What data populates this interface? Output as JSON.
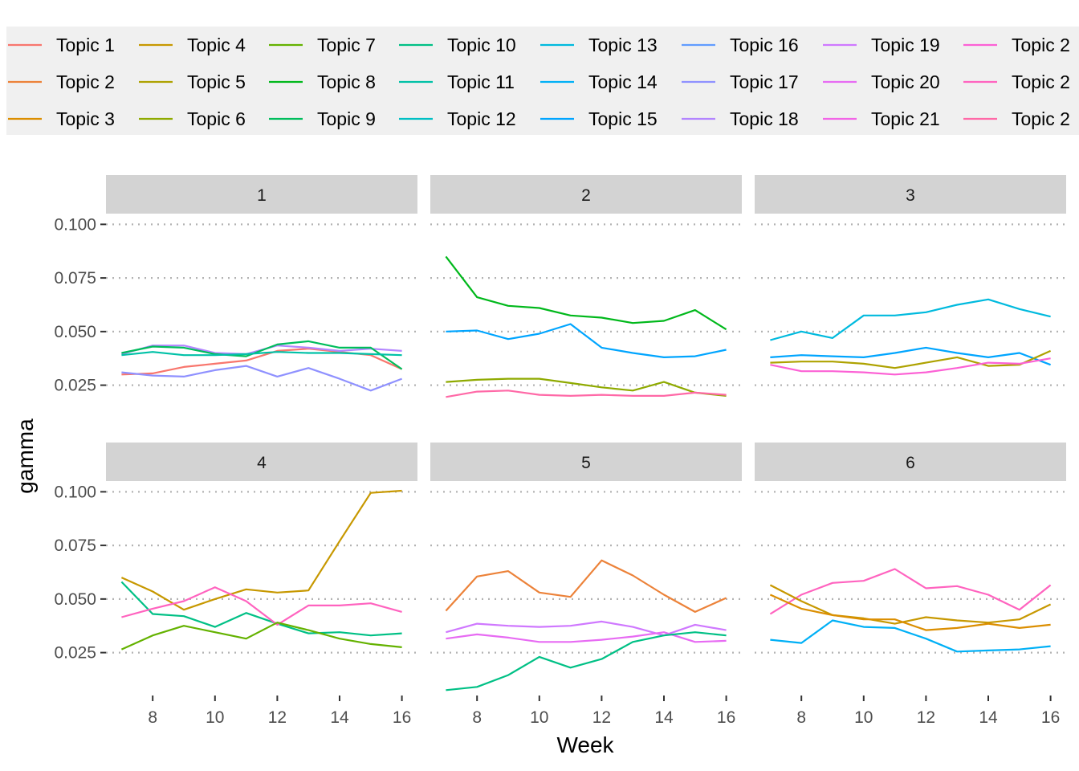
{
  "chart_data": {
    "type": "line",
    "xlabel": "Week",
    "ylabel": "gamma",
    "xlim": [
      6.5,
      16.5
    ],
    "ylim": [
      0.005,
      0.105
    ],
    "x_ticks": [
      8,
      10,
      12,
      14,
      16
    ],
    "x_tick_labels": [
      "8",
      "10",
      "12",
      "14",
      "16"
    ],
    "y_ticks": [
      0.025,
      0.05,
      0.075,
      0.1
    ],
    "y_tick_labels": [
      "0.025",
      "0.050",
      "0.075",
      "0.100"
    ],
    "grid": "horizontal-major-dotted",
    "legend_position": "top",
    "legend": [
      {
        "label": "Topic 1",
        "color": "#F8766D"
      },
      {
        "label": "Topic 2",
        "color": "#EC8239"
      },
      {
        "label": "Topic 3",
        "color": "#DB8E00"
      },
      {
        "label": "Topic 4",
        "color": "#C79800"
      },
      {
        "label": "Topic 5",
        "color": "#AEA200"
      },
      {
        "label": "Topic 6",
        "color": "#8FAA00"
      },
      {
        "label": "Topic 7",
        "color": "#64B200"
      },
      {
        "label": "Topic 8",
        "color": "#00B81B"
      },
      {
        "label": "Topic 9",
        "color": "#00BD5C"
      },
      {
        "label": "Topic 10",
        "color": "#00C085"
      },
      {
        "label": "Topic 11",
        "color": "#00C1A7"
      },
      {
        "label": "Topic 12",
        "color": "#00BFC4"
      },
      {
        "label": "Topic 13",
        "color": "#00BADE"
      },
      {
        "label": "Topic 14",
        "color": "#00B0F6"
      },
      {
        "label": "Topic 15",
        "color": "#00A5FF"
      },
      {
        "label": "Topic 16",
        "color": "#619CFF"
      },
      {
        "label": "Topic 17",
        "color": "#8F91FF"
      },
      {
        "label": "Topic 18",
        "color": "#B385FF"
      },
      {
        "label": "Topic 19",
        "color": "#CF78FF"
      },
      {
        "label": "Topic 20",
        "color": "#E76BF3"
      },
      {
        "label": "Topic 21",
        "color": "#F265E7"
      },
      {
        "label": "Topic 2",
        "color": "#FC61D5"
      },
      {
        "label": "Topic 2",
        "color": "#FF63BF"
      },
      {
        "label": "Topic 2",
        "color": "#FF69A7"
      }
    ],
    "facets": [
      {
        "label": "1",
        "series": [
          {
            "color": "#F8766D",
            "x": [
              7,
              8,
              9,
              10,
              11,
              12,
              13,
              14,
              15,
              16
            ],
            "y": [
              0.03,
              0.0305,
              0.0335,
              0.035,
              0.0365,
              0.041,
              0.042,
              0.0405,
              0.039,
              0.0325
            ]
          },
          {
            "color": "#B385FF",
            "x": [
              7,
              8,
              9,
              10,
              11,
              12,
              13,
              14,
              15,
              16
            ],
            "y": [
              0.0395,
              0.0435,
              0.0435,
              0.04,
              0.0395,
              0.0435,
              0.0425,
              0.041,
              0.042,
              0.041
            ]
          },
          {
            "color": "#00BD5C",
            "x": [
              7,
              8,
              9,
              10,
              11,
              12,
              13,
              14,
              15,
              16
            ],
            "y": [
              0.04,
              0.043,
              0.0425,
              0.0395,
              0.0385,
              0.044,
              0.0455,
              0.0425,
              0.0425,
              0.0325
            ]
          },
          {
            "color": "#00C1A7",
            "x": [
              7,
              8,
              9,
              10,
              11,
              12,
              13,
              14,
              15,
              16
            ],
            "y": [
              0.039,
              0.0405,
              0.039,
              0.039,
              0.0395,
              0.0405,
              0.04,
              0.04,
              0.0395,
              0.039
            ]
          },
          {
            "color": "#8F91FF",
            "x": [
              7,
              8,
              9,
              10,
              11,
              12,
              13,
              14,
              15,
              16
            ],
            "y": [
              0.031,
              0.0295,
              0.029,
              0.032,
              0.034,
              0.029,
              0.033,
              0.028,
              0.0225,
              0.028
            ]
          }
        ]
      },
      {
        "label": "2",
        "series": [
          {
            "color": "#00B81B",
            "x": [
              7,
              8,
              9,
              10,
              11,
              12,
              13,
              14,
              15,
              16
            ],
            "y": [
              0.085,
              0.066,
              0.062,
              0.061,
              0.0575,
              0.0565,
              0.054,
              0.055,
              0.06,
              0.051
            ]
          },
          {
            "color": "#00A5FF",
            "x": [
              7,
              8,
              9,
              10,
              11,
              12,
              13,
              14,
              15,
              16
            ],
            "y": [
              0.05,
              0.0505,
              0.0465,
              0.049,
              0.0535,
              0.0425,
              0.04,
              0.038,
              0.0385,
              0.0415
            ]
          },
          {
            "color": "#8FAA00",
            "x": [
              7,
              8,
              9,
              10,
              11,
              12,
              13,
              14,
              15,
              16
            ],
            "y": [
              0.0265,
              0.0275,
              0.028,
              0.028,
              0.026,
              0.024,
              0.0225,
              0.0265,
              0.0215,
              0.02
            ]
          },
          {
            "color": "#FF69A7",
            "x": [
              7,
              8,
              9,
              10,
              11,
              12,
              13,
              14,
              15,
              16
            ],
            "y": [
              0.0195,
              0.022,
              0.0225,
              0.0205,
              0.02,
              0.0205,
              0.02,
              0.02,
              0.0215,
              0.0205
            ]
          }
        ]
      },
      {
        "label": "3",
        "series": [
          {
            "color": "#00BADE",
            "x": [
              7,
              8,
              9,
              10,
              11,
              12,
              13,
              14,
              15,
              16
            ],
            "y": [
              0.046,
              0.05,
              0.047,
              0.0575,
              0.0575,
              0.059,
              0.0625,
              0.065,
              0.0605,
              0.057
            ]
          },
          {
            "color": "#00A5FF",
            "x": [
              7,
              8,
              9,
              10,
              11,
              12,
              13,
              14,
              15,
              16
            ],
            "y": [
              0.038,
              0.039,
              0.0385,
              0.038,
              0.04,
              0.0425,
              0.04,
              0.038,
              0.04,
              0.0345
            ]
          },
          {
            "color": "#AEA200",
            "x": [
              7,
              8,
              9,
              10,
              11,
              12,
              13,
              14,
              15,
              16
            ],
            "y": [
              0.0355,
              0.036,
              0.036,
              0.035,
              0.033,
              0.0355,
              0.038,
              0.034,
              0.0345,
              0.041
            ]
          },
          {
            "color": "#FC61D5",
            "x": [
              7,
              8,
              9,
              10,
              11,
              12,
              13,
              14,
              15,
              16
            ],
            "y": [
              0.0345,
              0.0315,
              0.0315,
              0.031,
              0.03,
              0.031,
              0.033,
              0.0355,
              0.035,
              0.0375
            ]
          }
        ]
      },
      {
        "label": "4",
        "series": [
          {
            "color": "#C79800",
            "x": [
              7,
              8,
              9,
              10,
              11,
              12,
              13,
              14,
              15,
              16
            ],
            "y": [
              0.06,
              0.0535,
              0.045,
              0.05,
              0.0545,
              0.053,
              0.054,
              0.077,
              0.0995,
              0.1005
            ]
          },
          {
            "color": "#00C085",
            "x": [
              7,
              8,
              9,
              10,
              11,
              12,
              13,
              14,
              15,
              16
            ],
            "y": [
              0.058,
              0.043,
              0.042,
              0.037,
              0.0435,
              0.0385,
              0.034,
              0.0345,
              0.033,
              0.034
            ]
          },
          {
            "color": "#FF63BF",
            "x": [
              7,
              8,
              9,
              10,
              11,
              12,
              13,
              14,
              15,
              16
            ],
            "y": [
              0.0415,
              0.0455,
              0.049,
              0.0555,
              0.049,
              0.038,
              0.047,
              0.047,
              0.048,
              0.044
            ]
          },
          {
            "color": "#64B200",
            "x": [
              7,
              8,
              9,
              10,
              11,
              12,
              13,
              14,
              15,
              16
            ],
            "y": [
              0.0265,
              0.033,
              0.0375,
              0.0345,
              0.0315,
              0.039,
              0.0355,
              0.0315,
              0.029,
              0.0275
            ]
          }
        ]
      },
      {
        "label": "5",
        "series": [
          {
            "color": "#EC8239",
            "x": [
              7,
              8,
              9,
              10,
              11,
              12,
              13,
              14,
              15,
              16
            ],
            "y": [
              0.0445,
              0.0605,
              0.063,
              0.053,
              0.051,
              0.068,
              0.061,
              0.052,
              0.044,
              0.0505
            ]
          },
          {
            "color": "#CF78FF",
            "x": [
              7,
              8,
              9,
              10,
              11,
              12,
              13,
              14,
              15,
              16
            ],
            "y": [
              0.0345,
              0.0385,
              0.0375,
              0.037,
              0.0375,
              0.0395,
              0.037,
              0.033,
              0.038,
              0.0355
            ]
          },
          {
            "color": "#E76BF3",
            "x": [
              7,
              8,
              9,
              10,
              11,
              12,
              13,
              14,
              15,
              16
            ],
            "y": [
              0.0315,
              0.0335,
              0.032,
              0.03,
              0.03,
              0.031,
              0.0325,
              0.0345,
              0.03,
              0.0305
            ]
          },
          {
            "color": "#00C085",
            "x": [
              7,
              8,
              9,
              10,
              11,
              12,
              13,
              14,
              15,
              16
            ],
            "y": [
              0.0075,
              0.009,
              0.0145,
              0.023,
              0.018,
              0.022,
              0.03,
              0.033,
              0.0345,
              0.033
            ]
          }
        ]
      },
      {
        "label": "6",
        "series": [
          {
            "color": "#FF63BF",
            "x": [
              7,
              8,
              9,
              10,
              11,
              12,
              13,
              14,
              15,
              16
            ],
            "y": [
              0.043,
              0.052,
              0.0575,
              0.0585,
              0.064,
              0.055,
              0.056,
              0.052,
              0.045,
              0.0565
            ]
          },
          {
            "color": "#C79800",
            "x": [
              7,
              8,
              9,
              10,
              11,
              12,
              13,
              14,
              15,
              16
            ],
            "y": [
              0.0565,
              0.049,
              0.0425,
              0.041,
              0.0385,
              0.0415,
              0.04,
              0.039,
              0.0405,
              0.0475
            ]
          },
          {
            "color": "#DB8E00",
            "x": [
              7,
              8,
              9,
              10,
              11,
              12,
              13,
              14,
              15,
              16
            ],
            "y": [
              0.052,
              0.0455,
              0.0425,
              0.0405,
              0.0405,
              0.0355,
              0.0365,
              0.0385,
              0.0365,
              0.038
            ]
          },
          {
            "color": "#00B0F6",
            "x": [
              7,
              8,
              9,
              10,
              11,
              12,
              13,
              14,
              15,
              16
            ],
            "y": [
              0.031,
              0.0295,
              0.04,
              0.037,
              0.0365,
              0.0315,
              0.0255,
              0.026,
              0.0265,
              0.028
            ]
          }
        ]
      }
    ]
  }
}
